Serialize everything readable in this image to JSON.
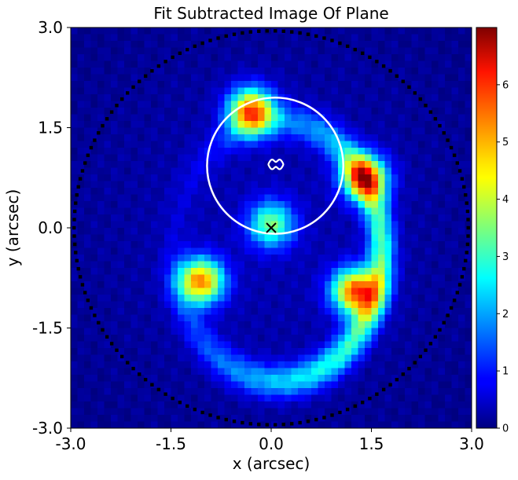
{
  "chart_data": {
    "type": "heatmap",
    "title": "Fit Subtracted Image Of Plane",
    "xlabel": "x (arcsec)",
    "ylabel": "y (arcsec)",
    "xlim": [
      -3.0,
      3.0
    ],
    "ylim": [
      -3.0,
      3.0
    ],
    "x_ticks": [
      "-3.0",
      "-1.5",
      "0.0",
      "1.5",
      "3.0"
    ],
    "y_ticks": [
      "3.0",
      "1.5",
      "0.0",
      "-1.5",
      "-3.0"
    ],
    "x_tick_values": [
      -3.0,
      -1.5,
      0.0,
      1.5,
      3.0
    ],
    "y_tick_values": [
      3.0,
      1.5,
      0.0,
      -1.5,
      -3.0
    ],
    "colormap": "jet",
    "colorbar": {
      "range": [
        0,
        7
      ],
      "ticks": [
        "0",
        "1",
        "2",
        "3",
        "4",
        "5",
        "6"
      ],
      "tick_values": [
        0,
        1,
        2,
        3,
        4,
        5,
        6
      ]
    },
    "features": {
      "arc_ring": {
        "center": [
          0.1,
          -0.35
        ],
        "rx": 1.55,
        "ry": 1.95,
        "peak": 3.0
      },
      "bright_knots": [
        {
          "x": -0.3,
          "y": 1.75,
          "value": 6.9
        },
        {
          "x": 1.4,
          "y": 0.75,
          "value": 6.2
        },
        {
          "x": 1.25,
          "y": -0.95,
          "value": 6.9
        },
        {
          "x": -1.05,
          "y": -0.8,
          "value": 6.6
        },
        {
          "x": 0.0,
          "y": 0.05,
          "value": 4.2
        }
      ],
      "caustic_circle": {
        "center": [
          0.06,
          0.93
        ],
        "radius": 1.02,
        "color": "#ffffff"
      },
      "critical_curve_small": {
        "center": [
          0.07,
          0.95
        ],
        "color": "#ffffff"
      },
      "lens_center_marker": {
        "x": 0.0,
        "y": 0.0,
        "symbol": "x",
        "color": "#000000"
      },
      "mask_border_radius": 2.95
    }
  }
}
